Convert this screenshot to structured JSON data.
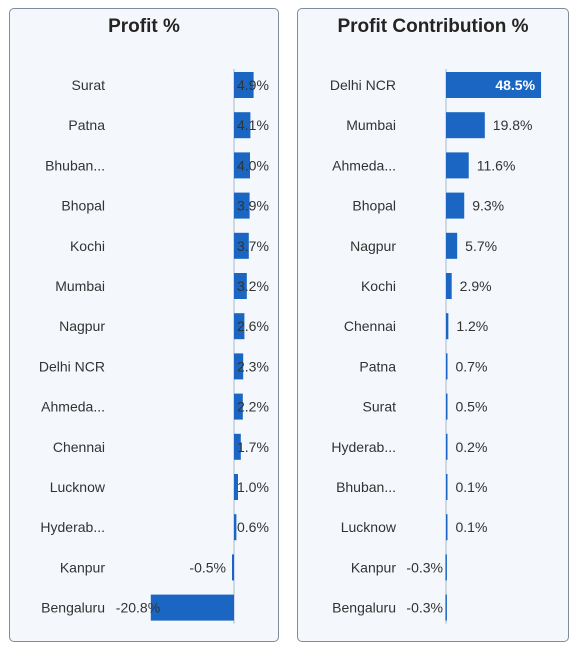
{
  "colors": {
    "bar": "#1a66c2",
    "axis": "#a8b9cc",
    "text": "#333333"
  },
  "chart_data": [
    {
      "type": "bar",
      "orientation": "horizontal",
      "title": "Profit %",
      "categories": [
        "Surat",
        "Patna",
        "Bhuban...",
        "Bhopal",
        "Kochi",
        "Mumbai",
        "Nagpur",
        "Delhi NCR",
        "Ahmeda...",
        "Chennai",
        "Lucknow",
        "Hyderab...",
        "Kanpur",
        "Bengaluru"
      ],
      "values": [
        4.9,
        4.1,
        4.0,
        3.9,
        3.7,
        3.2,
        2.6,
        2.3,
        2.2,
        1.7,
        1.0,
        0.6,
        -0.5,
        -20.8
      ],
      "value_labels": [
        "4.9%",
        "4.1%",
        "4.0%",
        "3.9%",
        "3.7%",
        "3.2%",
        "2.6%",
        "2.3%",
        "2.2%",
        "1.7%",
        "1.0%",
        "0.6%",
        "-0.5%",
        "-20.8%"
      ],
      "unit": "%",
      "xlim": [
        -21,
        5
      ]
    },
    {
      "type": "bar",
      "orientation": "horizontal",
      "title": "Profit Contribution %",
      "categories": [
        "Delhi NCR",
        "Mumbai",
        "Ahmeda...",
        "Bhopal",
        "Nagpur",
        "Kochi",
        "Chennai",
        "Patna",
        "Surat",
        "Hyderab...",
        "Bhuban...",
        "Lucknow",
        "Kanpur",
        "Bengaluru"
      ],
      "values": [
        48.5,
        19.8,
        11.6,
        9.3,
        5.7,
        2.9,
        1.2,
        0.7,
        0.5,
        0.2,
        0.1,
        0.1,
        -0.3,
        -0.3
      ],
      "value_labels": [
        "48.5%",
        "19.8%",
        "11.6%",
        "9.3%",
        "5.7%",
        "2.9%",
        "1.2%",
        "0.7%",
        "0.5%",
        "0.2%",
        "0.1%",
        "0.1%",
        "-0.3%",
        "-0.3%"
      ],
      "unit": "%",
      "xlim": [
        0,
        50
      ]
    }
  ]
}
